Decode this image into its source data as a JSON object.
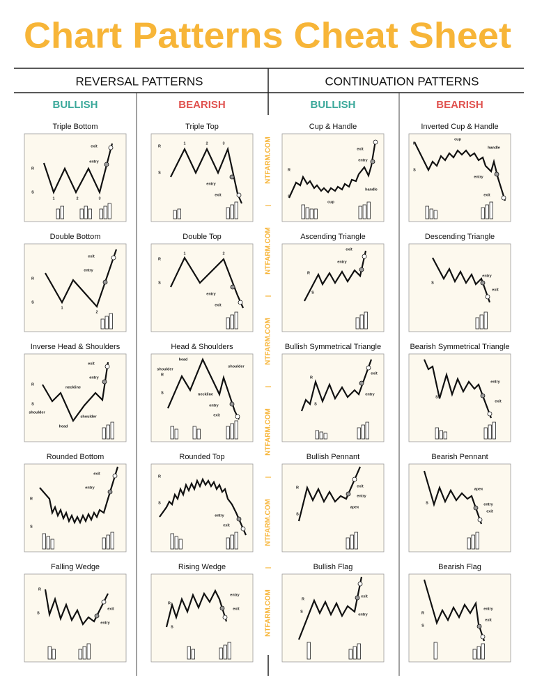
{
  "title": "Chart Patterns Cheat Sheet",
  "watermark": "NTFARM.COM",
  "sections": [
    {
      "title": "REVERSAL PATTERNS",
      "columns": [
        {
          "heading": "BULLISH",
          "patterns": [
            {
              "name": "Triple Bottom",
              "labels": [
                "exit",
                "entry",
                "R",
                "S",
                "1",
                "2",
                "3"
              ]
            },
            {
              "name": "Double Bottom",
              "labels": [
                "exit",
                "entry",
                "R",
                "S",
                "1",
                "2"
              ]
            },
            {
              "name": "Inverse Head & Shoulders",
              "labels": [
                "exit",
                "entry",
                "R",
                "S",
                "neckline",
                "shoulder",
                "head",
                "shoulder"
              ]
            },
            {
              "name": "Rounded Bottom",
              "labels": [
                "exit",
                "entry",
                "R",
                "S"
              ]
            },
            {
              "name": "Falling Wedge",
              "labels": [
                "R",
                "S",
                "exit",
                "entry"
              ]
            }
          ]
        },
        {
          "heading": "BEARISH",
          "patterns": [
            {
              "name": "Triple Top",
              "labels": [
                "R",
                "S",
                "1",
                "2",
                "3",
                "entry",
                "exit"
              ]
            },
            {
              "name": "Double Top",
              "labels": [
                "R",
                "S",
                "1",
                "2",
                "entry",
                "exit"
              ]
            },
            {
              "name": "Head & Shoulders",
              "labels": [
                "head",
                "shoulder",
                "R",
                "S",
                "shoulder",
                "neckline",
                "entry",
                "exit"
              ]
            },
            {
              "name": "Rounded Top",
              "labels": [
                "R",
                "S",
                "entry",
                "exit"
              ]
            },
            {
              "name": "Rising Wedge",
              "labels": [
                "R",
                "S",
                "entry",
                "exit"
              ]
            }
          ]
        }
      ]
    },
    {
      "title": "CONTINUATION PATTERNS",
      "columns": [
        {
          "heading": "BULLISH",
          "patterns": [
            {
              "name": "Cup & Handle",
              "labels": [
                "exit",
                "entry",
                "R",
                "S",
                "handle",
                "cup"
              ]
            },
            {
              "name": "Ascending Triangle",
              "labels": [
                "exit",
                "entry",
                "R",
                "S"
              ]
            },
            {
              "name": "Bullish Symmetrical Triangle",
              "labels": [
                "R",
                "S",
                "exit",
                "entry"
              ]
            },
            {
              "name": "Bullish Pennant",
              "labels": [
                "exit",
                "entry",
                "R",
                "S",
                "apex"
              ]
            },
            {
              "name": "Bullish Flag",
              "labels": [
                "exit",
                "entry",
                "R",
                "S"
              ]
            }
          ]
        },
        {
          "heading": "BEARISH",
          "patterns": [
            {
              "name": "Inverted Cup & Handle",
              "labels": [
                "cup",
                "handle",
                "R",
                "S",
                "entry",
                "exit"
              ]
            },
            {
              "name": "Descending Triangle",
              "labels": [
                "S",
                "entry",
                "exit"
              ]
            },
            {
              "name": "Bearish Symmetrical Triangle",
              "labels": [
                "S",
                "entry",
                "exit"
              ]
            },
            {
              "name": "Bearish Pennant",
              "labels": [
                "S",
                "apex",
                "entry",
                "exit"
              ]
            },
            {
              "name": "Bearish Flag",
              "labels": [
                "R",
                "S",
                "entry",
                "exit"
              ]
            }
          ]
        }
      ]
    }
  ]
}
